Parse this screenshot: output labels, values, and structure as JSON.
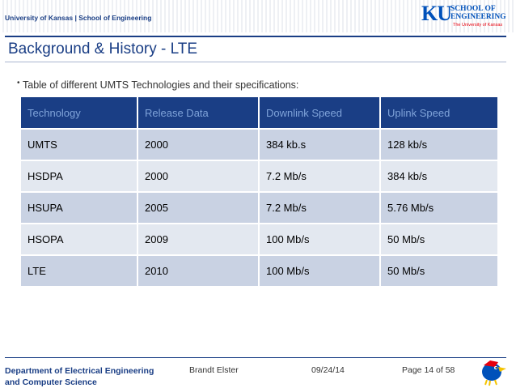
{
  "header": {
    "univ_line": "University of Kansas | School of Engineering",
    "logo_ku": "KU",
    "logo_school_1": "SCHOOL OF",
    "logo_school_2": "ENGINEERING",
    "logo_sub": "The University of Kansas"
  },
  "slide": {
    "title": "Background & History - LTE",
    "bullet": "Table of different UMTS Technologies and their specifications:"
  },
  "table": {
    "headers": [
      "Technology",
      "Release Data",
      "Downlink Speed",
      "Uplink Speed"
    ],
    "rows": [
      [
        "UMTS",
        "2000",
        "384 kb.s",
        "128 kb/s"
      ],
      [
        "HSDPA",
        "2000",
        "7.2 Mb/s",
        "384 kb/s"
      ],
      [
        "HSUPA",
        "2005",
        "7.2 Mb/s",
        "5.76 Mb/s"
      ],
      [
        "HSOPA",
        "2009",
        "100 Mb/s",
        "50 Mb/s"
      ],
      [
        "LTE",
        "2010",
        "100 Mb/s",
        "50 Mb/s"
      ]
    ]
  },
  "footer": {
    "dept_1": "Department of Electrical Engineering",
    "dept_2": "and Computer Science",
    "author": "Brandt Elster",
    "date": "09/24/14",
    "page": "Page 14 of 58"
  },
  "colors": {
    "brand_blue": "#1a3e85",
    "ku_blue": "#0051ba",
    "ku_red": "#e8000d"
  }
}
